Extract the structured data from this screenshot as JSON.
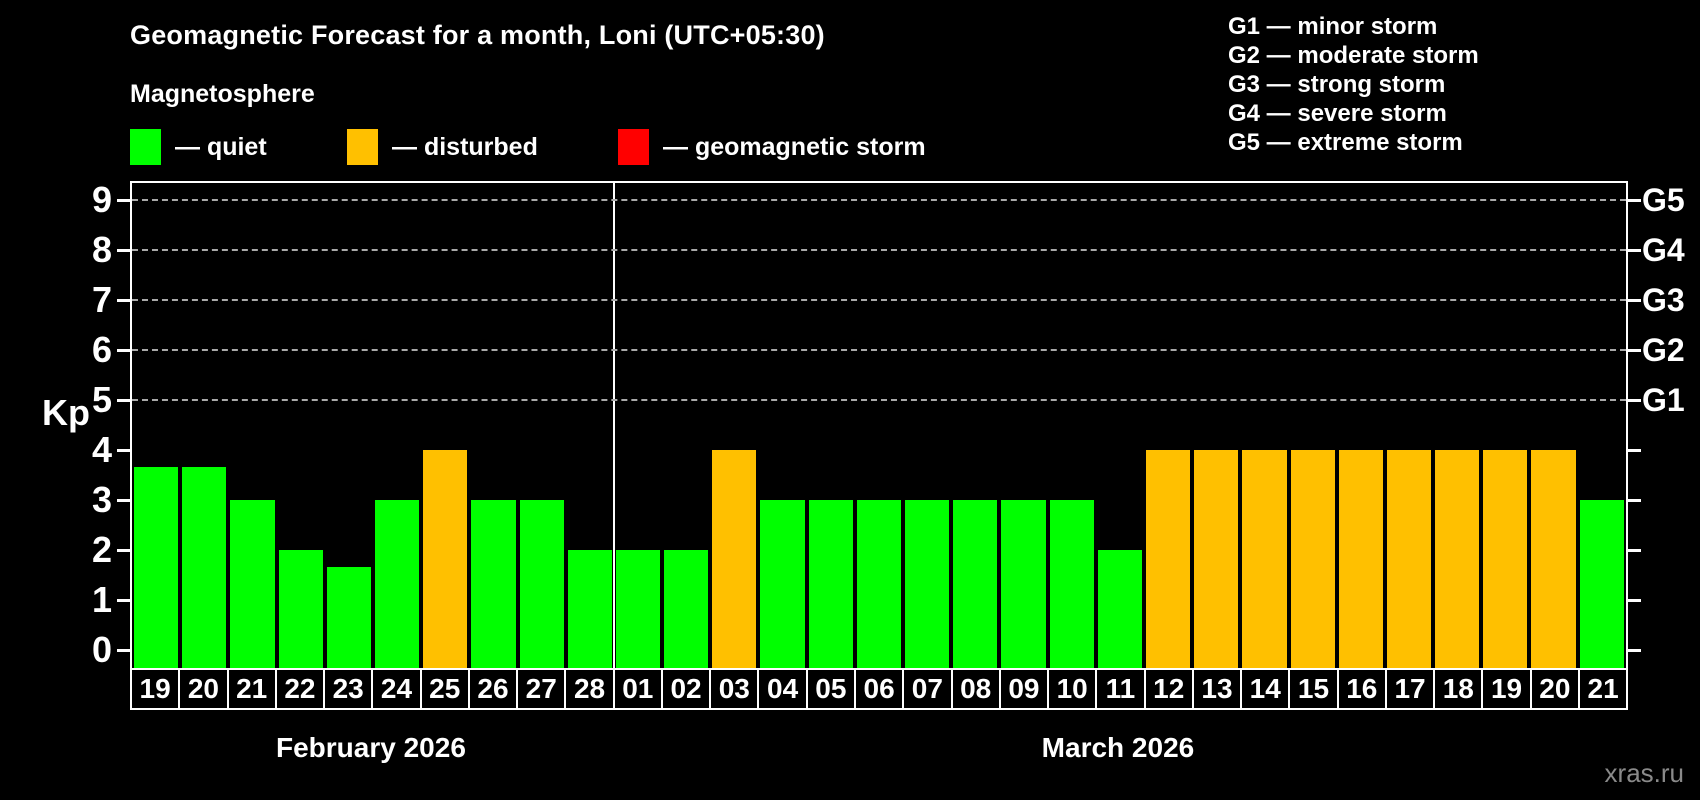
{
  "title": "Geomagnetic Forecast for a month, Loni (UTC+05:30)",
  "subtitle": "Magnetosphere",
  "legend": {
    "items": [
      {
        "label": "— quiet",
        "color": "#00ff00"
      },
      {
        "label": "— disturbed",
        "color": "#ffc000"
      },
      {
        "label": "— geomagnetic storm",
        "color": "#ff0000"
      }
    ]
  },
  "g_legend": [
    "G1 — minor storm",
    "G2 — moderate storm",
    "G3 — strong storm",
    "G4 — severe storm",
    "G5 — extreme storm"
  ],
  "watermark": "xras.ru",
  "chart_data": {
    "type": "bar",
    "title": "Geomagnetic Forecast for a month, Loni (UTC+05:30)",
    "ylabel": "Kp",
    "ylim": [
      0,
      9
    ],
    "grid": "dashed horizontal at Kp 5-9",
    "yticks": [
      0,
      1,
      2,
      3,
      4,
      5,
      6,
      7,
      8,
      9
    ],
    "grid_kp": [
      5,
      6,
      7,
      8,
      9
    ],
    "right_axis": [
      {
        "kp": 5,
        "label": "G1"
      },
      {
        "kp": 6,
        "label": "G2"
      },
      {
        "kp": 7,
        "label": "G3"
      },
      {
        "kp": 8,
        "label": "G4"
      },
      {
        "kp": 9,
        "label": "G5"
      }
    ],
    "colors": {
      "quiet": "#00ff00",
      "disturbed": "#ffc000",
      "storm": "#ff0000"
    },
    "months": [
      {
        "label": "February 2026",
        "days": 10
      },
      {
        "label": "March 2026",
        "days": 21
      }
    ],
    "bars": [
      {
        "month": "feb",
        "day": "19",
        "kp": 3.67,
        "status": "quiet"
      },
      {
        "month": "feb",
        "day": "20",
        "kp": 3.67,
        "status": "quiet"
      },
      {
        "month": "feb",
        "day": "21",
        "kp": 3,
        "status": "quiet"
      },
      {
        "month": "feb",
        "day": "22",
        "kp": 2,
        "status": "quiet"
      },
      {
        "month": "feb",
        "day": "23",
        "kp": 1.67,
        "status": "quiet"
      },
      {
        "month": "feb",
        "day": "24",
        "kp": 3,
        "status": "quiet"
      },
      {
        "month": "feb",
        "day": "25",
        "kp": 4,
        "status": "disturbed"
      },
      {
        "month": "feb",
        "day": "26",
        "kp": 3,
        "status": "quiet"
      },
      {
        "month": "feb",
        "day": "27",
        "kp": 3,
        "status": "quiet"
      },
      {
        "month": "feb",
        "day": "28",
        "kp": 2,
        "status": "quiet"
      },
      {
        "month": "mar",
        "day": "01",
        "kp": 2,
        "status": "quiet"
      },
      {
        "month": "mar",
        "day": "02",
        "kp": 2,
        "status": "quiet"
      },
      {
        "month": "mar",
        "day": "03",
        "kp": 4,
        "status": "disturbed"
      },
      {
        "month": "mar",
        "day": "04",
        "kp": 3,
        "status": "quiet"
      },
      {
        "month": "mar",
        "day": "05",
        "kp": 3,
        "status": "quiet"
      },
      {
        "month": "mar",
        "day": "06",
        "kp": 3,
        "status": "quiet"
      },
      {
        "month": "mar",
        "day": "07",
        "kp": 3,
        "status": "quiet"
      },
      {
        "month": "mar",
        "day": "08",
        "kp": 3,
        "status": "quiet"
      },
      {
        "month": "mar",
        "day": "09",
        "kp": 3,
        "status": "quiet"
      },
      {
        "month": "mar",
        "day": "10",
        "kp": 3,
        "status": "quiet"
      },
      {
        "month": "mar",
        "day": "11",
        "kp": 2,
        "status": "quiet"
      },
      {
        "month": "mar",
        "day": "12",
        "kp": 4,
        "status": "disturbed"
      },
      {
        "month": "mar",
        "day": "13",
        "kp": 4,
        "status": "disturbed"
      },
      {
        "month": "mar",
        "day": "14",
        "kp": 4,
        "status": "disturbed"
      },
      {
        "month": "mar",
        "day": "15",
        "kp": 4,
        "status": "disturbed"
      },
      {
        "month": "mar",
        "day": "16",
        "kp": 4,
        "status": "disturbed"
      },
      {
        "month": "mar",
        "day": "17",
        "kp": 4,
        "status": "disturbed"
      },
      {
        "month": "mar",
        "day": "18",
        "kp": 4,
        "status": "disturbed"
      },
      {
        "month": "mar",
        "day": "19",
        "kp": 4,
        "status": "disturbed"
      },
      {
        "month": "mar",
        "day": "20",
        "kp": 4,
        "status": "disturbed"
      },
      {
        "month": "mar",
        "day": "21",
        "kp": 3,
        "status": "quiet"
      }
    ]
  }
}
